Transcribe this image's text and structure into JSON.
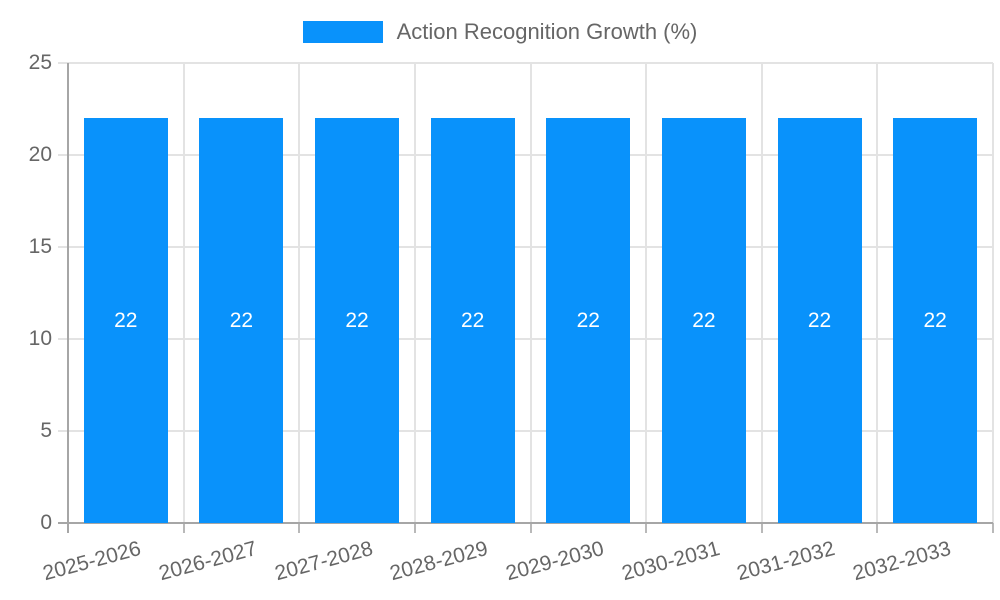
{
  "chart_data": {
    "type": "bar",
    "categories": [
      "2025-2026",
      "2026-2027",
      "2027-2028",
      "2028-2029",
      "2029-2030",
      "2030-2031",
      "2031-2032",
      "2032-2033"
    ],
    "series": [
      {
        "name": "Action Recognition Growth (%)",
        "values": [
          22,
          22,
          22,
          22,
          22,
          22,
          22,
          22
        ]
      }
    ],
    "title": "",
    "xlabel": "",
    "ylabel": "",
    "ylim": [
      0,
      25
    ],
    "yticks": [
      0,
      5,
      10,
      15,
      20,
      25
    ],
    "grid": true,
    "legend_position": "top",
    "x_tick_rotation_deg": -15,
    "bar_value_labels_shown": true,
    "colors": {
      "bar": "#0992fb",
      "grid": "#e3e3e3",
      "axis": "#a6a6a6",
      "x_tick_mark": "#b9b9b9",
      "tick_text": "#666666",
      "bar_label_text": "#ffffff",
      "background": "#ffffff"
    }
  }
}
